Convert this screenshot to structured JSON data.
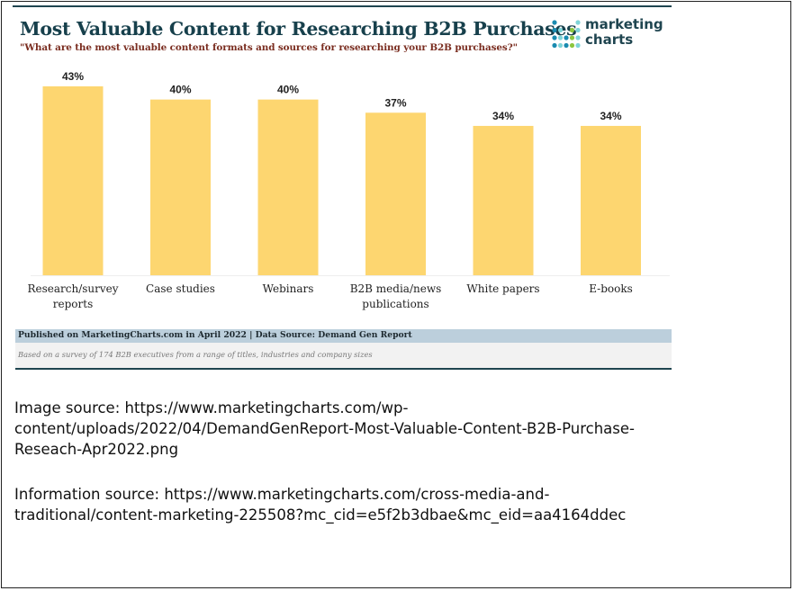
{
  "chart_data": {
    "type": "bar",
    "title": "Most Valuable Content for Researching B2B Purchases",
    "subtitle": "\"What are the most valuable content formats and sources for researching your B2B purchases?\"",
    "categories": [
      [
        "Research/survey",
        "reports"
      ],
      [
        "Case studies"
      ],
      [
        "Webinars"
      ],
      [
        "B2B media/news",
        "publications"
      ],
      [
        "White papers"
      ],
      [
        "E-books"
      ]
    ],
    "values": [
      43,
      40,
      40,
      37,
      34,
      34
    ],
    "data_labels": [
      "43%",
      "40%",
      "40%",
      "37%",
      "34%",
      "34%"
    ],
    "xlabel": "",
    "ylabel": "",
    "ylim": [
      0,
      43
    ],
    "grid": false,
    "legend": "none",
    "bar_color": "#fdd670"
  },
  "logo": {
    "line1": "marketing",
    "line2": "charts",
    "dot_colors": [
      "#1a8bb0",
      "#7fd4d8",
      "#8cc63f"
    ]
  },
  "footer": {
    "published": "Published on MarketingCharts.com in April 2022 | Data Source: Demand Gen Report",
    "note": "Based on a survey of 174 B2B executives from a range of titles, industries and company sizes"
  },
  "sources": {
    "image_lines": [
      "Image source: https://www.marketingcharts.com/wp-",
      "content/uploads/2022/04/DemandGenReport-Most-Valuable-Content-B2B-Purchase-",
      "Reseach-Apr2022.png"
    ],
    "info_lines": [
      "Information source: https://www.marketingcharts.com/cross-media-and-",
      "traditional/content-marketing-225508?mc_cid=e5f2b3dbae&mc_eid=aa4164ddec"
    ]
  }
}
